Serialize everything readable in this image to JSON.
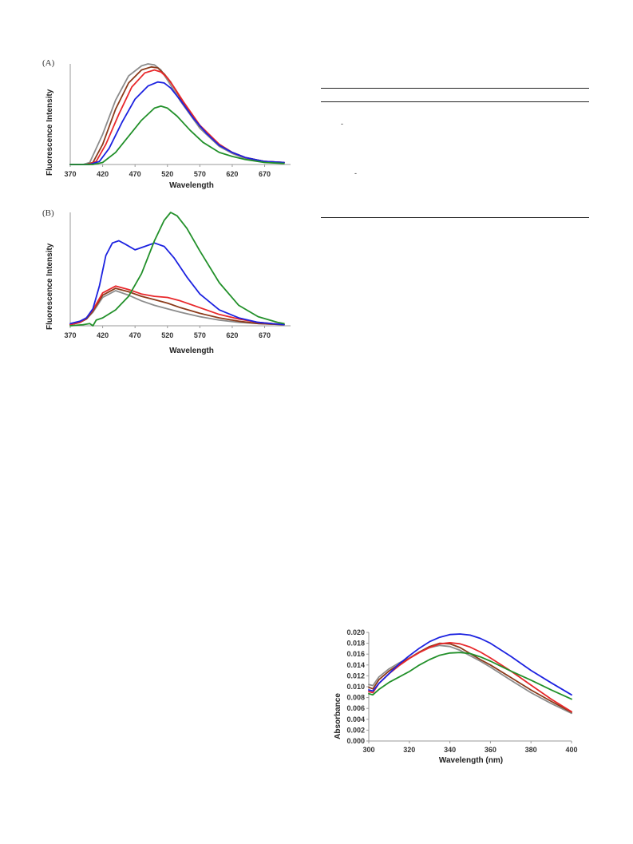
{
  "colors": {
    "gray": "#8c8c8c",
    "brown": "#8b3a1a",
    "red": "#e8282b",
    "blue": "#1c22e0",
    "green": "#22902a",
    "axis": "#999999"
  },
  "table": {
    "marks": [
      "-",
      "-"
    ]
  },
  "chart_data": [
    {
      "panel": "(A)",
      "type": "line",
      "xlabel": "Wavelength",
      "ylabel": "Fluorescence Intensity",
      "xlim": [
        370,
        710
      ],
      "ylim": [
        0,
        1.0
      ],
      "xticks": [
        370,
        420,
        470,
        520,
        570,
        620,
        670
      ],
      "show_yticks": false,
      "series": [
        {
          "color_key": "gray",
          "x": [
            370,
            390,
            400,
            420,
            440,
            460,
            480,
            490,
            500,
            510,
            520,
            540,
            570,
            600,
            620,
            640,
            670,
            700
          ],
          "y": [
            0,
            0,
            0.02,
            0.3,
            0.64,
            0.88,
            0.98,
            1.0,
            0.99,
            0.94,
            0.84,
            0.63,
            0.36,
            0.18,
            0.11,
            0.06,
            0.03,
            0.02
          ]
        },
        {
          "color_key": "brown",
          "x": [
            370,
            395,
            405,
            420,
            440,
            460,
            480,
            495,
            505,
            515,
            525,
            540,
            570,
            600,
            620,
            640,
            670,
            700
          ],
          "y": [
            0,
            0,
            0.02,
            0.2,
            0.55,
            0.81,
            0.94,
            0.97,
            0.96,
            0.9,
            0.82,
            0.66,
            0.38,
            0.2,
            0.12,
            0.07,
            0.03,
            0.02
          ]
        },
        {
          "color_key": "red",
          "x": [
            370,
            398,
            410,
            425,
            445,
            465,
            485,
            500,
            510,
            520,
            530,
            545,
            570,
            600,
            620,
            640,
            670,
            700
          ],
          "y": [
            0,
            0,
            0.03,
            0.2,
            0.5,
            0.77,
            0.91,
            0.94,
            0.92,
            0.86,
            0.77,
            0.62,
            0.39,
            0.2,
            0.12,
            0.07,
            0.03,
            0.02
          ]
        },
        {
          "color_key": "blue",
          "x": [
            370,
            400,
            415,
            430,
            450,
            470,
            490,
            505,
            515,
            525,
            540,
            560,
            580,
            600,
            620,
            640,
            670,
            700
          ],
          "y": [
            0,
            0,
            0.03,
            0.16,
            0.42,
            0.65,
            0.78,
            0.82,
            0.81,
            0.76,
            0.64,
            0.46,
            0.31,
            0.19,
            0.12,
            0.07,
            0.03,
            0.02
          ]
        },
        {
          "color_key": "green",
          "x": [
            370,
            405,
            420,
            440,
            460,
            480,
            500,
            510,
            520,
            535,
            555,
            575,
            600,
            620,
            640,
            670,
            700
          ],
          "y": [
            0,
            0,
            0.02,
            0.12,
            0.28,
            0.44,
            0.56,
            0.58,
            0.56,
            0.48,
            0.34,
            0.22,
            0.12,
            0.08,
            0.05,
            0.02,
            0.01
          ]
        }
      ]
    },
    {
      "panel": "(B)",
      "type": "line",
      "xlabel": "Wavelength",
      "ylabel": "Fluorescence Intensity",
      "xlim": [
        370,
        710
      ],
      "ylim": [
        0,
        1.0
      ],
      "xticks": [
        370,
        420,
        470,
        520,
        570,
        620,
        670
      ],
      "show_yticks": false,
      "series": [
        {
          "color_key": "gray",
          "x": [
            370,
            385,
            395,
            405,
            420,
            440,
            460,
            480,
            500,
            520,
            540,
            570,
            600,
            630,
            660,
            700
          ],
          "y": [
            0.01,
            0.03,
            0.06,
            0.12,
            0.25,
            0.31,
            0.27,
            0.22,
            0.18,
            0.15,
            0.12,
            0.08,
            0.05,
            0.03,
            0.02,
            0.01
          ]
        },
        {
          "color_key": "brown",
          "x": [
            370,
            385,
            395,
            405,
            420,
            440,
            460,
            480,
            500,
            520,
            540,
            570,
            600,
            630,
            660,
            700
          ],
          "y": [
            0.01,
            0.03,
            0.06,
            0.13,
            0.27,
            0.33,
            0.3,
            0.26,
            0.23,
            0.2,
            0.16,
            0.11,
            0.07,
            0.04,
            0.02,
            0.01
          ]
        },
        {
          "color_key": "red",
          "x": [
            370,
            385,
            395,
            405,
            420,
            440,
            460,
            480,
            500,
            520,
            540,
            570,
            600,
            630,
            660,
            700
          ],
          "y": [
            0.01,
            0.03,
            0.07,
            0.14,
            0.29,
            0.35,
            0.32,
            0.28,
            0.26,
            0.25,
            0.22,
            0.16,
            0.1,
            0.06,
            0.03,
            0.01
          ]
        },
        {
          "color_key": "blue",
          "x": [
            370,
            385,
            395,
            405,
            415,
            425,
            435,
            445,
            455,
            470,
            485,
            500,
            515,
            530,
            550,
            570,
            600,
            630,
            660,
            700
          ],
          "y": [
            0.02,
            0.04,
            0.07,
            0.15,
            0.35,
            0.62,
            0.73,
            0.75,
            0.72,
            0.67,
            0.7,
            0.73,
            0.7,
            0.6,
            0.43,
            0.28,
            0.14,
            0.07,
            0.03,
            0.01
          ]
        },
        {
          "color_key": "green",
          "x": [
            370,
            390,
            400,
            405,
            410,
            420,
            440,
            460,
            480,
            500,
            515,
            525,
            535,
            550,
            570,
            600,
            630,
            660,
            690,
            700
          ],
          "y": [
            0.0,
            0.01,
            0.02,
            0.0,
            0.05,
            0.07,
            0.14,
            0.26,
            0.46,
            0.75,
            0.93,
            1.0,
            0.97,
            0.86,
            0.66,
            0.38,
            0.18,
            0.08,
            0.03,
            0.02
          ]
        }
      ]
    },
    {
      "panel": "",
      "type": "line",
      "xlabel": "Wavelength (nm)",
      "ylabel": "Absorbance",
      "xlim": [
        300,
        400
      ],
      "ylim": [
        0,
        0.02
      ],
      "xticks": [
        300,
        320,
        340,
        360,
        380,
        400
      ],
      "yticks": [
        "0.000",
        "0.002",
        "0.004",
        "0.006",
        "0.008",
        "0.010",
        "0.012",
        "0.014",
        "0.016",
        "0.018",
        "0.020"
      ],
      "show_yticks": true,
      "series": [
        {
          "color_key": "gray",
          "x": [
            300,
            302,
            305,
            310,
            315,
            320,
            325,
            330,
            335,
            340,
            345,
            350,
            355,
            360,
            370,
            380,
            390,
            400
          ],
          "y": [
            0.0104,
            0.0102,
            0.0118,
            0.0133,
            0.0144,
            0.0153,
            0.0164,
            0.0172,
            0.0176,
            0.0174,
            0.0167,
            0.0157,
            0.0147,
            0.0136,
            0.0112,
            0.0089,
            0.0069,
            0.0051
          ]
        },
        {
          "color_key": "brown",
          "x": [
            300,
            302,
            305,
            310,
            315,
            320,
            325,
            330,
            335,
            340,
            345,
            350,
            355,
            360,
            370,
            380,
            390,
            400
          ],
          "y": [
            0.0099,
            0.0096,
            0.0113,
            0.0129,
            0.0141,
            0.0152,
            0.0164,
            0.0174,
            0.018,
            0.0179,
            0.0172,
            0.0161,
            0.015,
            0.014,
            0.0117,
            0.0094,
            0.0073,
            0.0053
          ]
        },
        {
          "color_key": "red",
          "x": [
            300,
            302,
            305,
            310,
            315,
            320,
            325,
            330,
            335,
            340,
            345,
            350,
            355,
            360,
            370,
            380,
            390,
            400
          ],
          "y": [
            0.0091,
            0.0089,
            0.0106,
            0.0124,
            0.0139,
            0.0152,
            0.0163,
            0.0172,
            0.0179,
            0.0181,
            0.0179,
            0.0173,
            0.0164,
            0.0153,
            0.0129,
            0.0103,
            0.0077,
            0.0054
          ]
        },
        {
          "color_key": "blue",
          "x": [
            300,
            302,
            305,
            310,
            315,
            320,
            325,
            330,
            335,
            340,
            345,
            350,
            355,
            360,
            370,
            380,
            390,
            400
          ],
          "y": [
            0.0094,
            0.0092,
            0.0106,
            0.0124,
            0.0142,
            0.0157,
            0.0171,
            0.0183,
            0.0191,
            0.0196,
            0.0197,
            0.0195,
            0.0189,
            0.018,
            0.0156,
            0.013,
            0.0107,
            0.0085
          ]
        },
        {
          "color_key": "green",
          "x": [
            300,
            302,
            305,
            310,
            315,
            320,
            325,
            330,
            335,
            340,
            345,
            350,
            355,
            360,
            370,
            380,
            390,
            400
          ],
          "y": [
            0.0087,
            0.0085,
            0.0095,
            0.0108,
            0.0118,
            0.0128,
            0.014,
            0.015,
            0.0158,
            0.0162,
            0.0163,
            0.0161,
            0.0155,
            0.0147,
            0.0129,
            0.0112,
            0.0094,
            0.0077
          ]
        }
      ]
    }
  ]
}
